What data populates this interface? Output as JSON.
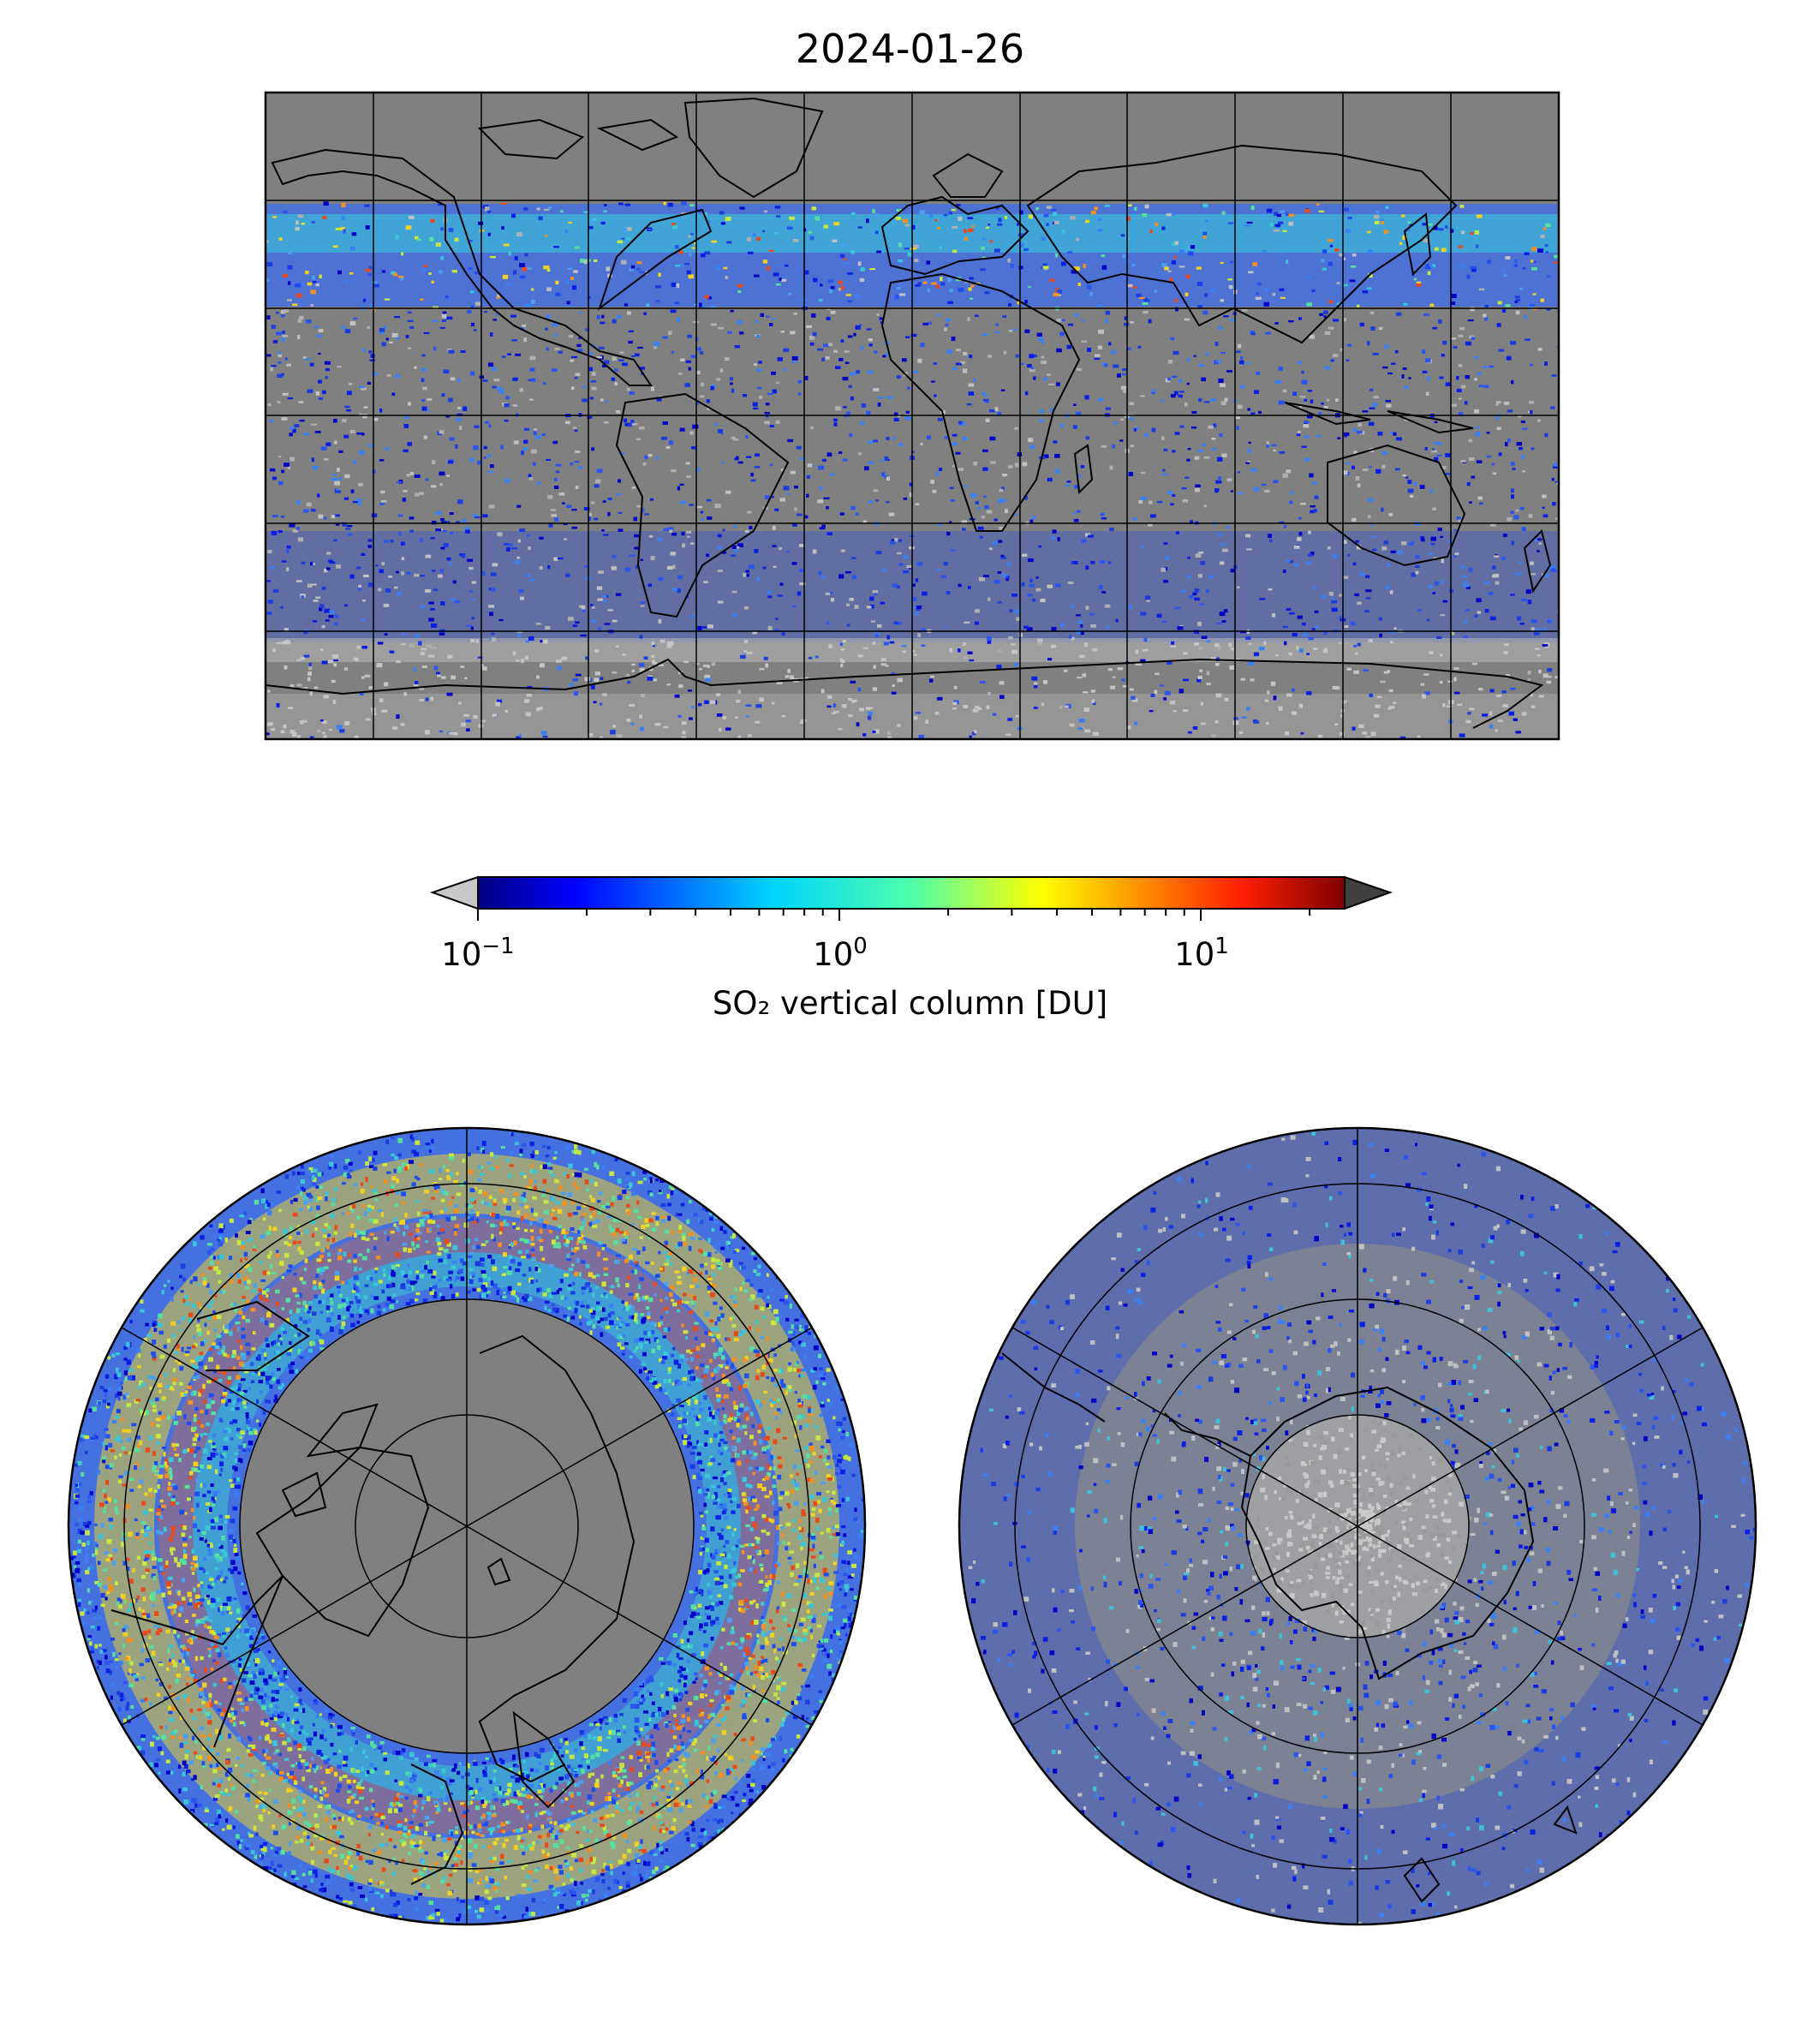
{
  "figure": {
    "title": "2024-01-26"
  },
  "colorbar": {
    "label": "SO₂ vertical column [DU]",
    "scale": "log",
    "range": [
      0.1,
      25
    ],
    "colormap": "jet",
    "under_color": "#c8c8c8",
    "over_color": "#404040",
    "ticks": [
      {
        "value": 0.1,
        "base": "10",
        "exponent": "−1"
      },
      {
        "value": 1,
        "base": "10",
        "exponent": "0"
      },
      {
        "value": 10,
        "base": "10",
        "exponent": "1"
      }
    ]
  },
  "maps": [
    {
      "name": "global-map",
      "projection": "plate-carree",
      "background": "#808080",
      "gridlines": true
    },
    {
      "name": "north-polar-map",
      "projection": "north-polar-stereographic",
      "background": "#808080",
      "gridlines": true
    },
    {
      "name": "south-polar-map",
      "projection": "south-polar-stereographic",
      "background": "#808080",
      "gridlines": true
    }
  ]
}
